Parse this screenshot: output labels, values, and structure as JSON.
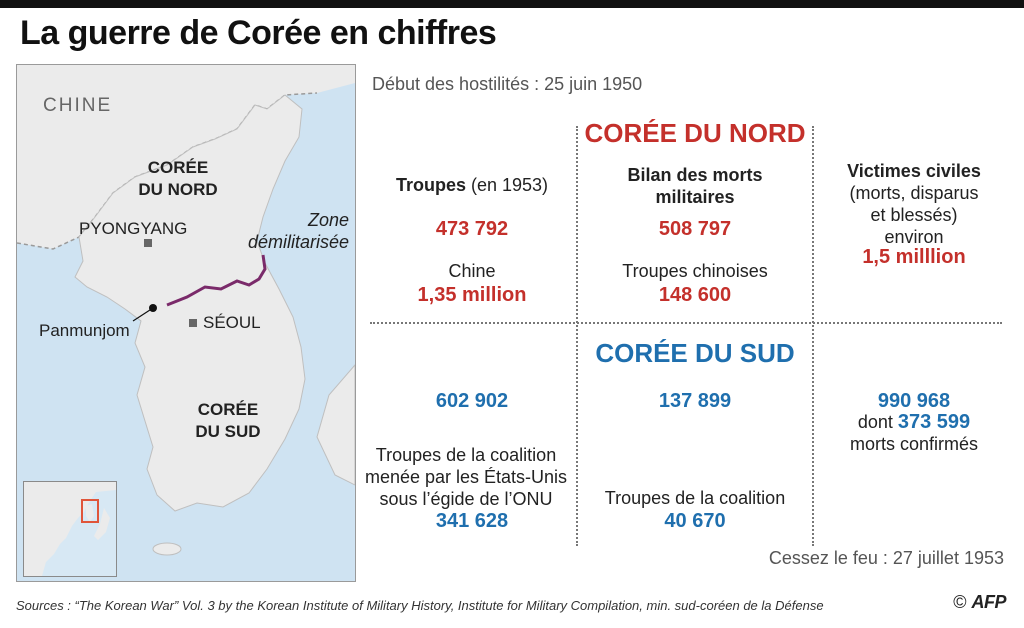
{
  "title": "La guerre de Corée en chiffres",
  "map": {
    "labels": {
      "china": "CHINE",
      "north_korea_1": "CORÉE",
      "north_korea_2": "DU NORD",
      "south_korea_1": "CORÉE",
      "south_korea_2": "DU SUD",
      "pyongyang": "PYONGYANG",
      "seoul": "SÉOUL",
      "panmunjom": "Panmunjom",
      "dmz_1": "Zone",
      "dmz_2": "démilitarisée"
    },
    "colors": {
      "land": "#ebebeb",
      "sea": "#cfe3f2",
      "dmz_line": "#7a2a6a",
      "inset_highlight": "#e0553a"
    }
  },
  "start": "Début des hostilités : 25 juin 1950",
  "end": "Cessez le feu : 27 juillet 1953",
  "north": {
    "heading": "CORÉE DU NORD",
    "troops_head": "Troupes",
    "troops_year": "(en 1953)",
    "troops": "473 792",
    "china_label": "Chine",
    "china_troops": "1,35 million",
    "deaths_head_1": "Bilan des morts",
    "deaths_head_2": "militaires",
    "deaths": "508 797",
    "chinese_label": "Troupes chinoises",
    "chinese_deaths": "148 600",
    "civil_head": "Victimes civiles",
    "civil_sub_1": "(morts, disparus",
    "civil_sub_2": "et blessés)",
    "civil_sub_3": "environ",
    "civil_value": "1,5 milllion"
  },
  "south": {
    "heading": "CORÉE DU SUD",
    "troops": "602 902",
    "coalition_1": "Troupes de la coalition",
    "coalition_2": "menée par les États-Unis",
    "coalition_3": "sous l’égide de l’ONU",
    "coalition_troops": "341 628",
    "deaths": "137 899",
    "coalition_label": "Troupes de la coalition",
    "coalition_deaths": "40 670",
    "civil_value": "990 968",
    "civil_dont": "dont",
    "civil_confirmed": "373 599",
    "civil_confirmed_label": "morts confirmés"
  },
  "sources": "Sources : “The Korean War” Vol. 3 by the Korean Institute of Military History, Institute for Military Compilation, min. sud-coréen de la Défense",
  "credit": {
    "copyright": "©",
    "brand": "AFP"
  }
}
